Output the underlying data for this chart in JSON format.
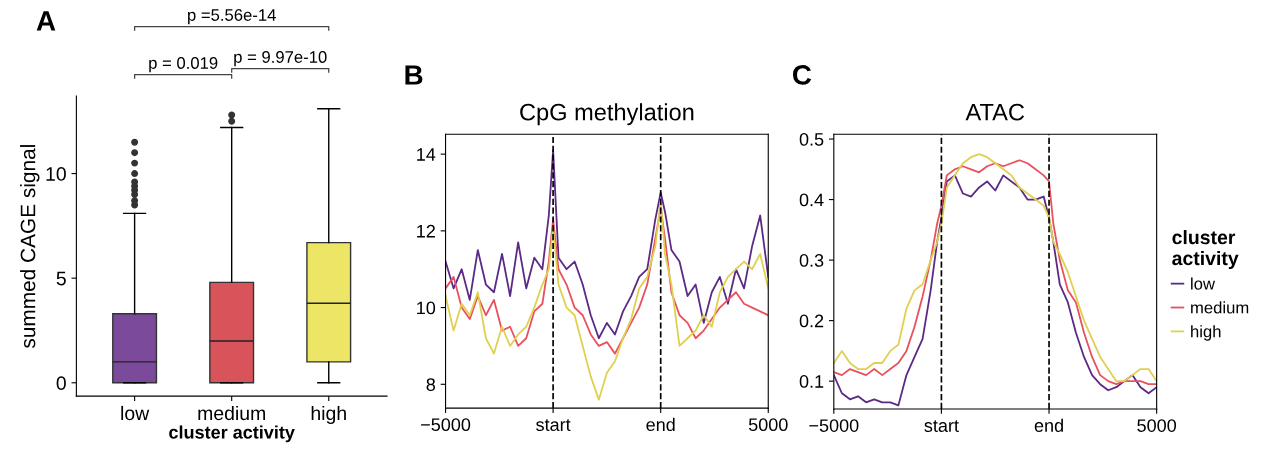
{
  "chart_data": [
    {
      "type": "box",
      "categories": [
        "low",
        "medium",
        "high"
      ],
      "colors": [
        "#7b4a9b",
        "#d9545a",
        "#ede565"
      ],
      "boxes": [
        {
          "low": 0,
          "q1": 0,
          "median": 1.0,
          "q3": 3.3,
          "high": 8.1,
          "outliers": [
            8.5,
            8.7,
            9.0,
            9.2,
            9.4,
            9.6,
            10.0,
            10.5,
            11.0,
            11.5
          ]
        },
        {
          "low": 0,
          "q1": 0,
          "median": 2.0,
          "q3": 4.8,
          "high": 12.2,
          "outliers": [
            12.5,
            12.8
          ]
        },
        {
          "low": 0,
          "q1": 1.0,
          "median": 3.8,
          "q3": 6.7,
          "high": 13.1
        }
      ],
      "ylim": [
        -0.64,
        13.7
      ],
      "yticks": [
        0,
        5,
        10
      ],
      "ylabel": "summed CAGE signal",
      "xlabel": "cluster activity",
      "annotations": [
        "A",
        "p = 0.019",
        "p = 9.97e-10",
        "p =5.56e-14"
      ]
    },
    {
      "type": "line",
      "title": "CpG methylation",
      "annotations": [
        "B"
      ],
      "x": [
        -5000,
        -4750,
        -4500,
        -4250,
        -4000,
        -3750,
        -3500,
        -3250,
        -3000,
        -2750,
        -2500,
        -2250,
        -2000,
        -1800,
        -1667,
        -1500,
        -1250,
        -1000,
        -750,
        -500,
        -250,
        0,
        250,
        500,
        750,
        1000,
        1250,
        1500,
        1667,
        1800,
        2000,
        2250,
        2500,
        2750,
        3000,
        3250,
        3500,
        3750,
        4000,
        4250,
        4500,
        4750,
        5000
      ],
      "series": [
        {
          "color": "#5b2a86",
          "values": [
            11.2,
            10.5,
            11.0,
            10.2,
            11.5,
            10.6,
            10.4,
            11.4,
            10.3,
            11.7,
            10.5,
            11.3,
            11.0,
            12.4,
            14.1,
            11.3,
            11.0,
            11.2,
            10.6,
            9.8,
            9.2,
            9.6,
            9.3,
            9.9,
            10.3,
            10.8,
            11.0,
            12.3,
            13.0,
            12.5,
            11.5,
            11.2,
            10.3,
            10.6,
            9.6,
            10.4,
            10.8,
            10.1,
            11.0,
            10.5,
            11.6,
            12.4,
            10.8
          ]
        },
        {
          "color": "#e8525e",
          "values": [
            10.5,
            10.8,
            10.0,
            9.7,
            10.3,
            9.8,
            10.2,
            9.4,
            9.5,
            9.0,
            9.2,
            9.9,
            10.1,
            11.2,
            12.3,
            11.0,
            10.6,
            10.0,
            9.8,
            9.3,
            9.0,
            9.1,
            8.8,
            9.2,
            9.6,
            10.0,
            10.6,
            11.8,
            12.6,
            11.8,
            10.4,
            9.8,
            9.6,
            9.2,
            9.4,
            9.7,
            10.0,
            10.2,
            10.4,
            10.1,
            10.0,
            9.9,
            9.8
          ]
        },
        {
          "color": "#e0d050",
          "values": [
            10.3,
            9.4,
            10.1,
            9.8,
            10.4,
            9.2,
            8.8,
            9.5,
            9.0,
            9.3,
            9.5,
            10.0,
            10.6,
            11.0,
            12.1,
            10.6,
            10.0,
            9.8,
            9.0,
            8.2,
            7.6,
            8.3,
            8.6,
            9.2,
            9.7,
            10.5,
            10.8,
            11.6,
            12.8,
            11.4,
            10.6,
            9.0,
            9.2,
            9.4,
            9.8,
            9.5,
            10.4,
            10.8,
            11.0,
            11.2,
            11.0,
            11.4,
            10.5
          ]
        }
      ],
      "xlim": [
        -5000,
        5000
      ],
      "xticks": [
        {
          "value": -5000,
          "label": "−5000"
        },
        {
          "value": -1667,
          "label": "start"
        },
        {
          "value": 1667,
          "label": "end"
        },
        5000
      ],
      "ylim": [
        7.38,
        14.52
      ],
      "yticks": [
        8,
        10,
        12,
        14
      ],
      "ref_lines": [
        {
          "axis": "x",
          "value": -1667,
          "line_style": "dashed",
          "color": "#000000"
        },
        {
          "axis": "x",
          "value": 1667,
          "line_style": "dashed",
          "color": "#000000"
        }
      ]
    },
    {
      "type": "line",
      "title": "ATAC",
      "annotations": [
        "C"
      ],
      "legend": "right",
      "legend_title": "cluster\nactivity",
      "x": [
        -5000,
        -4750,
        -4500,
        -4250,
        -4000,
        -3750,
        -3500,
        -3250,
        -3000,
        -2750,
        -2500,
        -2250,
        -2000,
        -1800,
        -1667,
        -1500,
        -1250,
        -1000,
        -750,
        -500,
        -250,
        0,
        250,
        500,
        750,
        1000,
        1250,
        1500,
        1667,
        1800,
        2000,
        2250,
        2500,
        2750,
        3000,
        3250,
        3500,
        3750,
        4000,
        4250,
        4500,
        4750,
        5000
      ],
      "series": [
        {
          "name": "low",
          "color": "#5b2a86",
          "values": [
            0.11,
            0.08,
            0.07,
            0.075,
            0.065,
            0.07,
            0.065,
            0.065,
            0.06,
            0.11,
            0.14,
            0.17,
            0.25,
            0.33,
            0.37,
            0.43,
            0.44,
            0.41,
            0.405,
            0.42,
            0.43,
            0.415,
            0.44,
            0.43,
            0.42,
            0.4,
            0.4,
            0.405,
            0.37,
            0.33,
            0.26,
            0.23,
            0.18,
            0.14,
            0.11,
            0.095,
            0.085,
            0.09,
            0.1,
            0.11,
            0.09,
            0.08,
            0.09
          ]
        },
        {
          "name": "medium",
          "color": "#e8525e",
          "values": [
            0.115,
            0.11,
            0.12,
            0.115,
            0.11,
            0.12,
            0.11,
            0.12,
            0.13,
            0.15,
            0.19,
            0.24,
            0.3,
            0.36,
            0.39,
            0.44,
            0.45,
            0.455,
            0.45,
            0.445,
            0.455,
            0.46,
            0.455,
            0.46,
            0.465,
            0.46,
            0.45,
            0.44,
            0.43,
            0.36,
            0.3,
            0.25,
            0.23,
            0.18,
            0.14,
            0.11,
            0.1,
            0.095,
            0.1,
            0.1,
            0.1,
            0.095,
            0.095
          ]
        },
        {
          "name": "high",
          "color": "#e0d050",
          "values": [
            0.13,
            0.15,
            0.13,
            0.12,
            0.12,
            0.13,
            0.13,
            0.15,
            0.16,
            0.22,
            0.25,
            0.26,
            0.3,
            0.33,
            0.36,
            0.42,
            0.44,
            0.46,
            0.47,
            0.475,
            0.47,
            0.46,
            0.45,
            0.44,
            0.42,
            0.41,
            0.4,
            0.39,
            0.37,
            0.33,
            0.31,
            0.28,
            0.24,
            0.2,
            0.17,
            0.14,
            0.12,
            0.1,
            0.1,
            0.11,
            0.12,
            0.12,
            0.1
          ]
        }
      ],
      "xlim": [
        -5000,
        5000
      ],
      "xticks": [
        {
          "value": -5000,
          "label": "−5000"
        },
        {
          "value": -1667,
          "label": "start"
        },
        {
          "value": 1667,
          "label": "end"
        },
        5000
      ],
      "ylim": [
        0.054,
        0.508
      ],
      "yticks": [
        0.1,
        0.2,
        0.3,
        0.4,
        0.5
      ],
      "ref_lines": [
        {
          "axis": "x",
          "value": -1667,
          "line_style": "dashed",
          "color": "#000000"
        },
        {
          "axis": "x",
          "value": 1667,
          "line_style": "dashed",
          "color": "#000000"
        }
      ]
    }
  ]
}
